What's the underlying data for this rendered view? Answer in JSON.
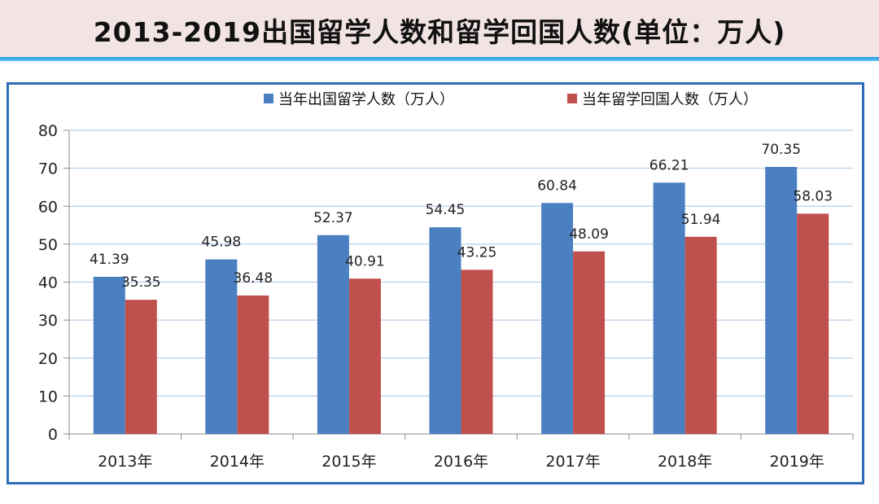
{
  "header": {
    "title": "2013-2019出国留学人数和留学回国人数(单位：万人)"
  },
  "chart_data": {
    "type": "bar",
    "title": "2013-2019出国留学人数和留学回国人数(单位：万人)",
    "categories": [
      "2013年",
      "2014年",
      "2015年",
      "2016年",
      "2017年",
      "2018年",
      "2019年"
    ],
    "series": [
      {
        "name": "当年出国留学人数（万人）",
        "color": "#4a7fc1",
        "values": [
          41.39,
          45.98,
          52.37,
          54.45,
          60.84,
          66.21,
          70.35
        ],
        "labels": [
          "41.39",
          "45.98",
          "52.37",
          "54.45",
          "60.84",
          "66.21",
          "70.35"
        ]
      },
      {
        "name": "当年留学回国人数（万人）",
        "color": "#c0504d",
        "values": [
          35.35,
          36.48,
          40.91,
          43.25,
          48.09,
          51.94,
          58.03
        ],
        "labels": [
          "35.35",
          "36.48",
          "40.91",
          "43.25",
          "48.09",
          "51.94",
          "58.03"
        ]
      }
    ],
    "ylim": [
      0,
      80
    ],
    "yticks": [
      0,
      10,
      20,
      30,
      40,
      50,
      60,
      70,
      80
    ],
    "grid": true,
    "legend": "top",
    "gridColor": "#a9c4e0",
    "axisColor": "#8c8c8c"
  }
}
